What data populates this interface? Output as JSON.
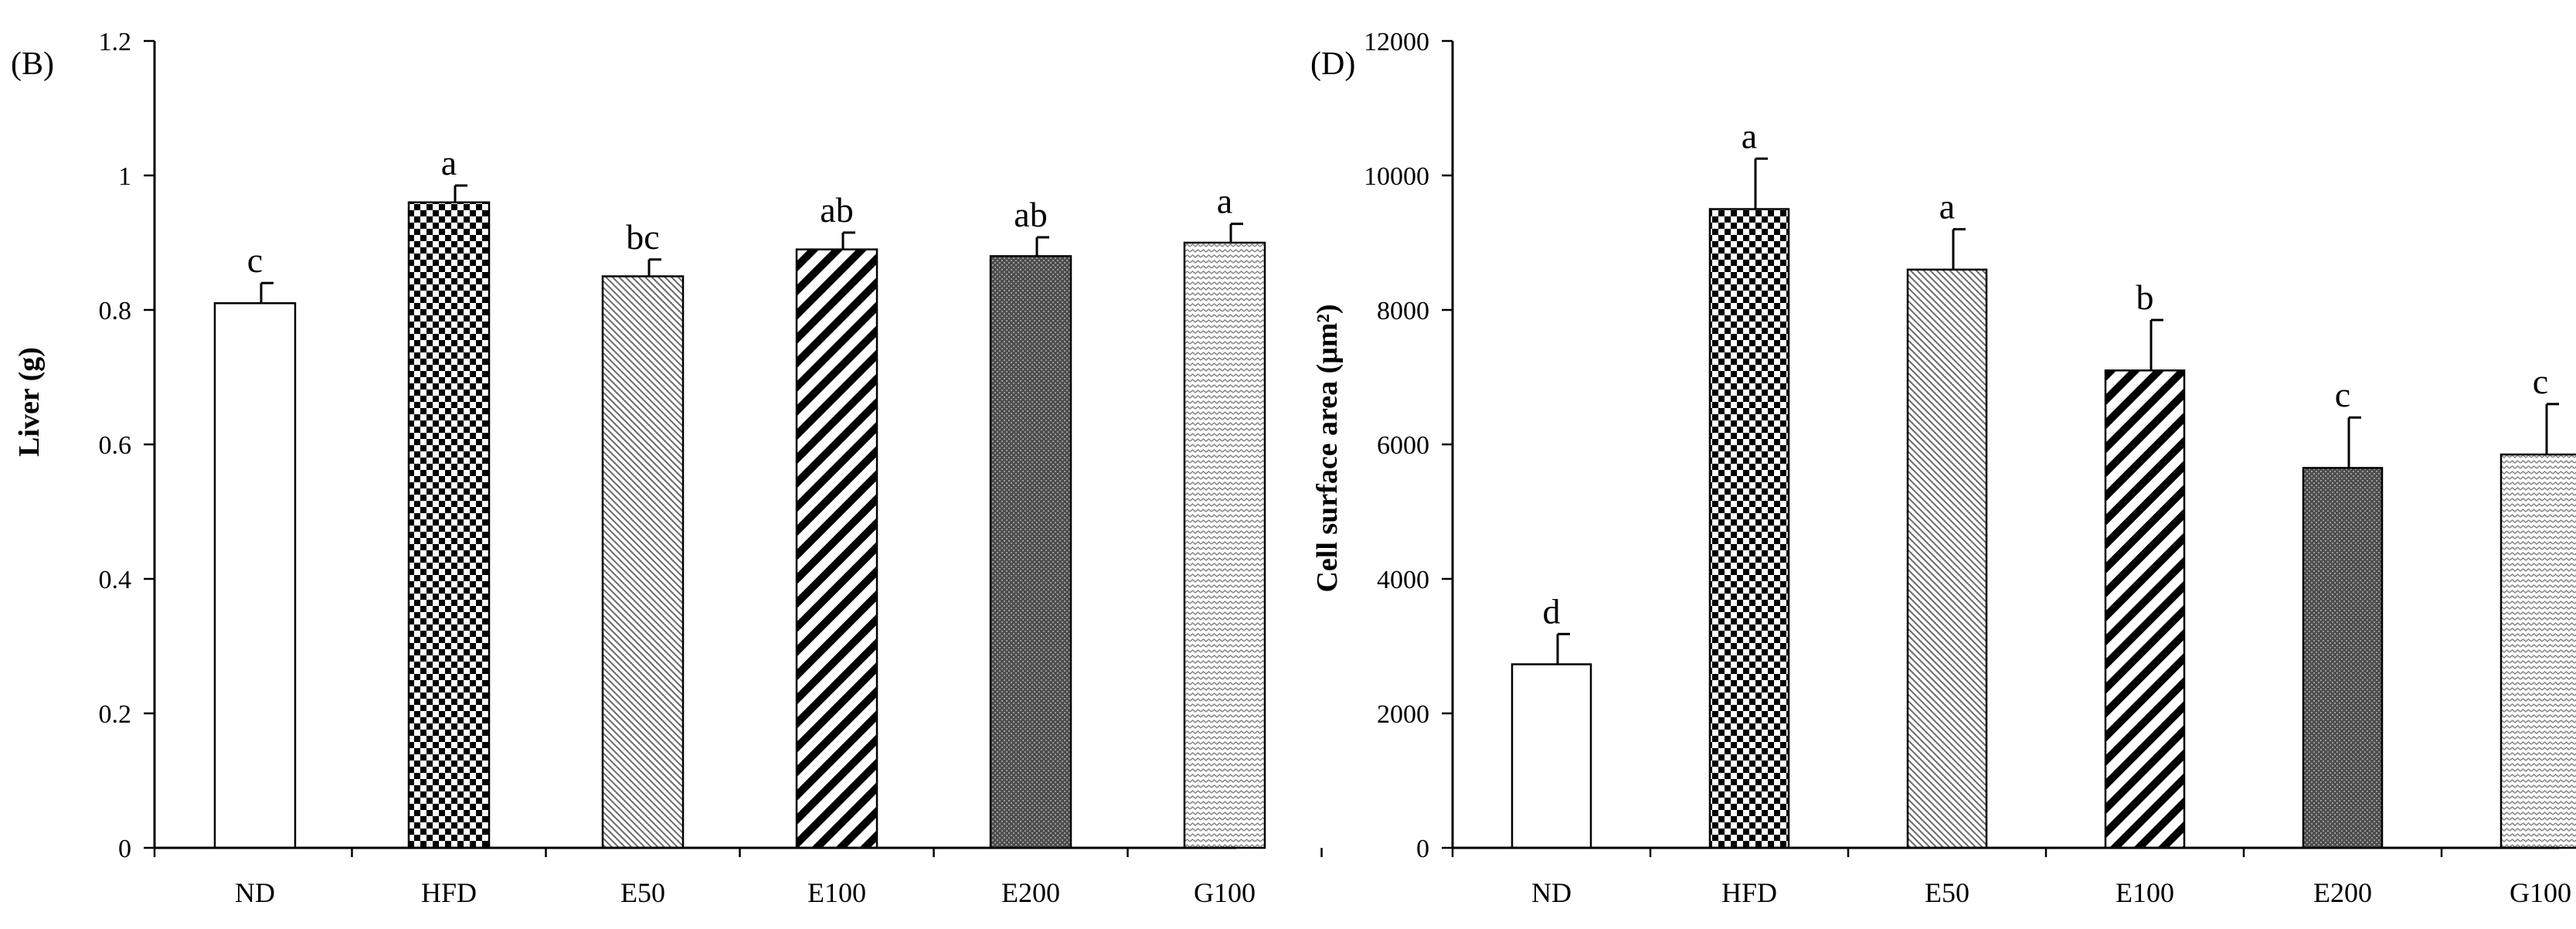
{
  "chart_data": [
    {
      "panel": "(B)",
      "type": "bar",
      "title": "",
      "xlabel": "",
      "ylabel": "Liver (g)",
      "ylim": [
        0,
        1.2
      ],
      "yticks": [
        0,
        0.2,
        0.4,
        0.6,
        0.8,
        1,
        1.2
      ],
      "ytick_labels": [
        "0",
        "0.2",
        "0.4",
        "0.6",
        "0.8",
        "1",
        "1.2"
      ],
      "categories": [
        "ND",
        "HFD",
        "E50",
        "E100",
        "E200",
        "G100"
      ],
      "values": [
        0.81,
        0.96,
        0.85,
        0.89,
        0.88,
        0.9
      ],
      "errors": [
        0.03,
        0.025,
        0.025,
        0.025,
        0.028,
        0.028
      ],
      "significance": [
        "c",
        "a",
        "bc",
        "ab",
        "ab",
        "a"
      ],
      "patterns": [
        "none",
        "checker",
        "fine-diagonal",
        "bold-diagonal",
        "dark-stipple",
        "light-zigzag"
      ],
      "grid": false,
      "legend": "none"
    },
    {
      "panel": "(D)",
      "type": "bar",
      "title": "",
      "xlabel": "",
      "ylabel": "Cell surface area (μm²)",
      "ylim": [
        0,
        12000
      ],
      "yticks": [
        0,
        2000,
        4000,
        6000,
        8000,
        10000,
        12000
      ],
      "ytick_labels": [
        "0",
        "2000",
        "4000",
        "6000",
        "8000",
        "10000",
        "12000"
      ],
      "categories": [
        "ND",
        "HFD",
        "E50",
        "E100",
        "E200",
        "G100"
      ],
      "values": [
        2730,
        9500,
        8600,
        7100,
        5650,
        5850
      ],
      "errors": [
        450,
        750,
        600,
        750,
        750,
        750
      ],
      "significance": [
        "d",
        "a",
        "a",
        "b",
        "c",
        "c"
      ],
      "patterns": [
        "none",
        "checker",
        "fine-diagonal",
        "bold-diagonal",
        "dark-stipple",
        "light-zigzag"
      ],
      "grid": false,
      "legend": "none"
    }
  ]
}
